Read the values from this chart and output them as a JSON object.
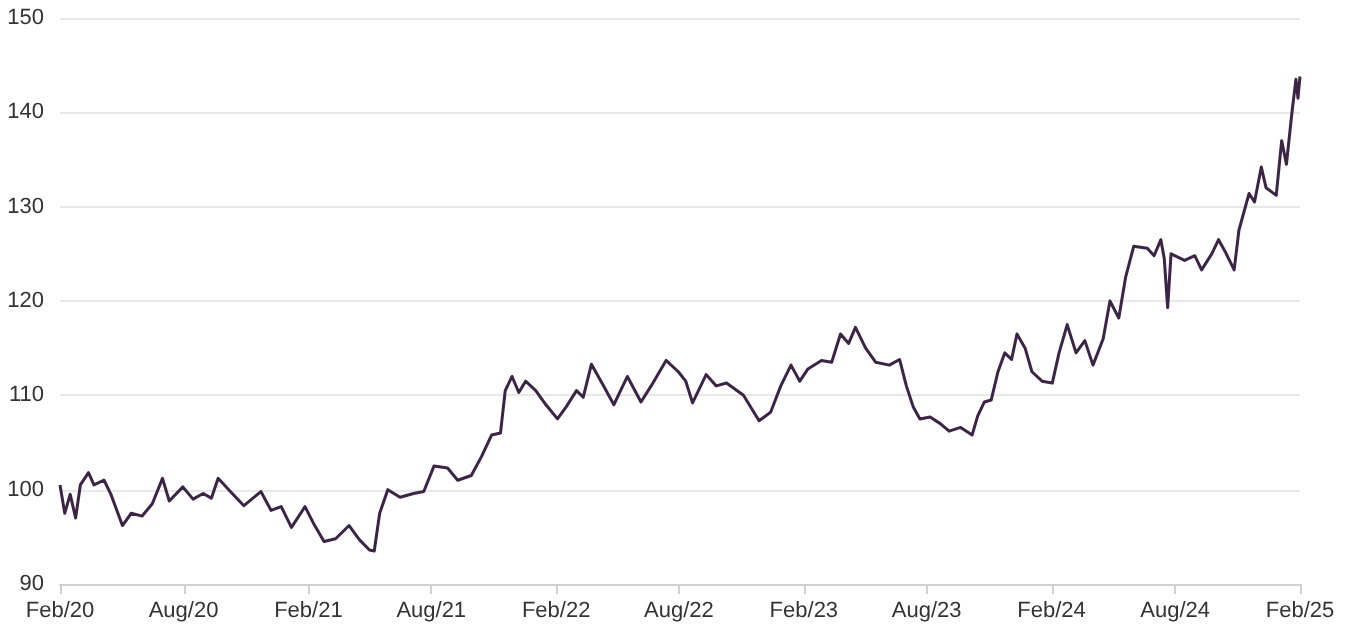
{
  "chart_data": {
    "type": "line",
    "x": [
      "2020-02-01",
      "2020-02-08",
      "2020-02-16",
      "2020-02-24",
      "2020-03-02",
      "2020-03-14",
      "2020-03-22",
      "2020-04-06",
      "2020-04-16",
      "2020-05-03",
      "2020-05-16",
      "2020-06-01",
      "2020-06-16",
      "2020-07-01",
      "2020-07-11",
      "2020-07-31",
      "2020-08-15",
      "2020-08-30",
      "2020-09-11",
      "2020-09-21",
      "2020-10-09",
      "2020-10-29",
      "2020-11-23",
      "2020-12-08",
      "2020-12-23",
      "2021-01-07",
      "2021-01-27",
      "2021-02-08",
      "2021-02-24",
      "2021-03-13",
      "2021-04-02",
      "2021-04-17",
      "2021-05-02",
      "2021-05-09",
      "2021-05-17",
      "2021-05-29",
      "2021-06-16",
      "2021-07-06",
      "2021-07-21",
      "2021-08-05",
      "2021-08-25",
      "2021-09-09",
      "2021-09-29",
      "2021-10-14",
      "2021-10-29",
      "2021-11-11",
      "2021-11-18",
      "2021-11-28",
      "2021-12-08",
      "2021-12-18",
      "2022-01-02",
      "2022-01-17",
      "2022-02-03",
      "2022-02-16",
      "2022-03-03",
      "2022-03-13",
      "2022-03-25",
      "2022-04-12",
      "2022-04-27",
      "2022-05-17",
      "2022-06-06",
      "2022-06-21",
      "2022-07-13",
      "2022-07-31",
      "2022-08-11",
      "2022-08-21",
      "2022-09-10",
      "2022-09-25",
      "2022-10-10",
      "2022-11-04",
      "2022-11-27",
      "2022-12-14",
      "2022-12-29",
      "2023-01-13",
      "2023-01-26",
      "2023-02-07",
      "2023-02-27",
      "2023-03-14",
      "2023-03-27",
      "2023-04-08",
      "2023-04-18",
      "2023-05-03",
      "2023-05-18",
      "2023-06-07",
      "2023-06-22",
      "2023-07-02",
      "2023-07-12",
      "2023-07-22",
      "2023-08-06",
      "2023-08-21",
      "2023-09-03",
      "2023-09-20",
      "2023-10-07",
      "2023-10-15",
      "2023-10-25",
      "2023-11-04",
      "2023-11-14",
      "2023-11-24",
      "2023-12-04",
      "2023-12-12",
      "2023-12-24",
      "2024-01-03",
      "2024-01-18",
      "2024-02-02",
      "2024-02-12",
      "2024-02-24",
      "2024-03-08",
      "2024-03-21",
      "2024-04-02",
      "2024-04-17",
      "2024-04-27",
      "2024-05-10",
      "2024-05-20",
      "2024-06-01",
      "2024-06-21",
      "2024-07-01",
      "2024-07-11",
      "2024-07-16",
      "2024-07-21",
      "2024-07-26",
      "2024-08-15",
      "2024-08-30",
      "2024-09-09",
      "2024-09-24",
      "2024-10-04",
      "2024-10-14",
      "2024-10-27",
      "2024-11-03",
      "2024-11-18",
      "2024-11-26",
      "2024-12-06",
      "2024-12-13",
      "2024-12-28",
      "2025-01-05",
      "2025-01-12",
      "2025-01-20",
      "2025-01-26",
      "2025-01-29",
      "2025-02-01"
    ],
    "series": [
      {
        "color": "#3b2446",
        "values": [
          100.5,
          97.5,
          99.5,
          97,
          100.5,
          101.8,
          100.5,
          101,
          99.5,
          96.2,
          97.5,
          97.2,
          98.5,
          101.2,
          98.8,
          100.3,
          99,
          99.6,
          99.1,
          101.2,
          99.8,
          98.3,
          99.8,
          97.8,
          98.2,
          96,
          98.2,
          96.5,
          94.5,
          94.8,
          96.2,
          94.7,
          93.6,
          93.5,
          97.5,
          100,
          99.2,
          99.6,
          99.8,
          102.5,
          102.3,
          101,
          101.5,
          103.5,
          105.8,
          106,
          110.5,
          112,
          110.3,
          111.5,
          110.5,
          109,
          107.5,
          108.8,
          110.5,
          109.8,
          113.3,
          111,
          109,
          112,
          109.3,
          111,
          113.7,
          112.5,
          111.5,
          109.2,
          112.2,
          111,
          111.3,
          110,
          107.3,
          108.2,
          111,
          113.2,
          111.5,
          112.8,
          113.7,
          113.5,
          116.5,
          115.5,
          117.2,
          115,
          113.5,
          113.2,
          113.8,
          111,
          108.8,
          107.5,
          107.7,
          107,
          106.2,
          106.6,
          105.8,
          107.8,
          109.3,
          109.5,
          112.5,
          114.5,
          113.8,
          116.5,
          115,
          112.5,
          111.5,
          111.3,
          114.5,
          117.5,
          114.5,
          115.8,
          113.2,
          116,
          120,
          118.2,
          122.5,
          125.8,
          125.6,
          124.8,
          126.5,
          124.5,
          119.3,
          125,
          124.3,
          124.8,
          123.3,
          125,
          126.5,
          125.2,
          123.3,
          127.5,
          131.4,
          130.5,
          134.2,
          132,
          131.2,
          137,
          134.5,
          139.9,
          143.5,
          141.5,
          143.8
        ]
      }
    ],
    "xlim": [
      "2020-02-01",
      "2025-02-01"
    ],
    "xticks": [
      {
        "value": "2020-02-01",
        "label": "Feb/20"
      },
      {
        "value": "2020-08-01",
        "label": "Aug/20"
      },
      {
        "value": "2021-02-01",
        "label": "Feb/21"
      },
      {
        "value": "2021-08-01",
        "label": "Aug/21"
      },
      {
        "value": "2022-02-01",
        "label": "Feb/22"
      },
      {
        "value": "2022-08-01",
        "label": "Aug/22"
      },
      {
        "value": "2023-02-01",
        "label": "Feb/23"
      },
      {
        "value": "2023-08-01",
        "label": "Aug/23"
      },
      {
        "value": "2024-02-01",
        "label": "Feb/24"
      },
      {
        "value": "2024-08-01",
        "label": "Aug/24"
      },
      {
        "value": "2025-02-01",
        "label": "Feb/25"
      }
    ],
    "ylim": [
      90,
      150
    ],
    "yticks": [
      90,
      100,
      110,
      120,
      130,
      140,
      150
    ],
    "grid": "y",
    "marker": "none",
    "line_style": "solid"
  }
}
